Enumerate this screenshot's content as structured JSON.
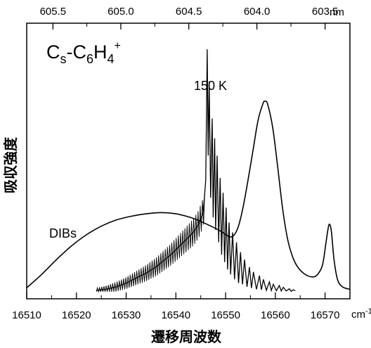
{
  "chart_data": {
    "type": "line",
    "title": "C_s-C_6H_4^+",
    "title_parts": {
      "c1": "C",
      "sub1": "s",
      "mid": "-C",
      "sub2": "6",
      "h": "H",
      "sub3": "4",
      "sup": "+"
    },
    "xlabel": "遷移周波数",
    "ylabel": "吸収強度",
    "x_unit": "cm",
    "x_unit_sup": "-1",
    "xlim": [
      16510,
      16575
    ],
    "ylim": [
      0,
      1
    ],
    "x_ticks": [
      "16510",
      "16520",
      "16530",
      "16540",
      "16550",
      "16560",
      "16570"
    ],
    "top_axis": {
      "unit": "nm",
      "ticks": [
        {
          "label": "605.5",
          "nm": 605.5
        },
        {
          "label": "605.0",
          "nm": 605.0
        },
        {
          "label": "604.5",
          "nm": 604.5
        },
        {
          "label": "604.0",
          "nm": 604.0
        },
        {
          "label": "603.5",
          "nm": 603.5
        }
      ]
    },
    "annotations": [
      "150 K",
      "DIBs"
    ],
    "series": [
      {
        "name": "DIBs",
        "x": [
          16510,
          16513,
          16516,
          16519,
          16522,
          16525,
          16528,
          16531,
          16534,
          16537,
          16540,
          16543,
          16546,
          16549,
          16550.5,
          16551.5,
          16552.5,
          16553.5,
          16554.5,
          16555.5,
          16556.5,
          16557.5,
          16558.0,
          16558.5,
          16559.5,
          16560.5,
          16561.5,
          16562.5,
          16563.5,
          16564.5,
          16566.0,
          16567.5,
          16568.5,
          16569.5,
          16570.2,
          16570.7,
          16571.0,
          16571.3,
          16571.8,
          16572.5,
          16573.5,
          16575
        ],
        "y": [
          0.016,
          0.07,
          0.13,
          0.185,
          0.23,
          0.265,
          0.29,
          0.305,
          0.315,
          0.32,
          0.315,
          0.3,
          0.275,
          0.245,
          0.225,
          0.225,
          0.26,
          0.34,
          0.45,
          0.57,
          0.69,
          0.76,
          0.77,
          0.755,
          0.66,
          0.5,
          0.33,
          0.21,
          0.14,
          0.1,
          0.07,
          0.06,
          0.07,
          0.11,
          0.2,
          0.265,
          0.27,
          0.24,
          0.13,
          0.05,
          0.02,
          0.01
        ]
      },
      {
        "name": "150 K",
        "x": [
          16524,
          16526,
          16528,
          16530,
          16532,
          16534,
          16536,
          16537.5,
          16539,
          16540.5,
          16541.5,
          16542.5,
          16543.5,
          16544.5,
          16545.5,
          16546.0,
          16546.3,
          16546.5,
          16546.7,
          16547.0,
          16547.3,
          16547.5,
          16547.8,
          16548.0,
          16548.3,
          16548.6,
          16548.9,
          16549.2,
          16549.5,
          16549.8,
          16550.1,
          16550.4,
          16550.7,
          16551.0,
          16551.4,
          16551.8,
          16552.2,
          16552.6,
          16553.0,
          16553.4,
          16553.8,
          16554.3,
          16554.8,
          16555.2,
          16555.6,
          16556.2,
          16556.8,
          16557.2,
          16557.6,
          16558.2,
          16558.8,
          16559.2,
          16559.6,
          16560.2,
          16560.8,
          16561.2,
          16561.6,
          16562.2,
          16562.8,
          16563.2,
          16563.6,
          16564.0
        ],
        "y": [
          0.005,
          0.01,
          0.02,
          0.035,
          0.055,
          0.075,
          0.1,
          0.125,
          0.15,
          0.18,
          0.2,
          0.22,
          0.24,
          0.27,
          0.32,
          0.45,
          0.98,
          0.55,
          0.85,
          0.38,
          0.7,
          0.3,
          0.62,
          0.25,
          0.55,
          0.2,
          0.46,
          0.15,
          0.4,
          0.12,
          0.34,
          0.09,
          0.28,
          0.07,
          0.24,
          0.05,
          0.2,
          0.035,
          0.16,
          0.03,
          0.13,
          0.02,
          0.1,
          0.015,
          0.08,
          0.01,
          0.065,
          0.008,
          0.05,
          0.006,
          0.04,
          0.005,
          0.03,
          0.004,
          0.025,
          0.003,
          0.018,
          0.003,
          0.012,
          0.002,
          0.008,
          0.004
        ]
      }
    ],
    "grid": false,
    "legend": "none"
  }
}
